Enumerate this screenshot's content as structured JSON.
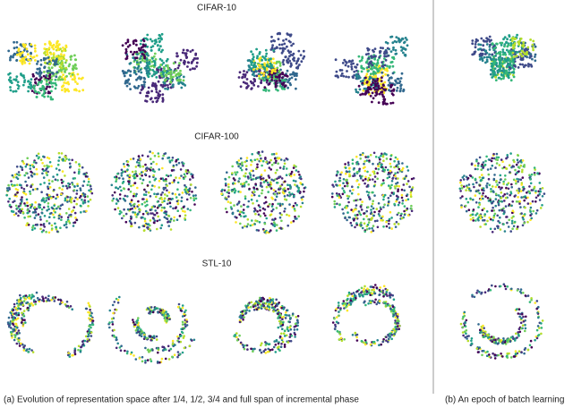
{
  "rows": [
    {
      "title": "CIFAR-10"
    },
    {
      "title": "CIFAR-100"
    },
    {
      "title": "STL-10"
    }
  ],
  "captions": {
    "a": "(a) Evolution of representation space after 1/4, 1/2, 3/4 and full span of incremental phase",
    "b": "(b) An epoch of batch learning"
  }
}
